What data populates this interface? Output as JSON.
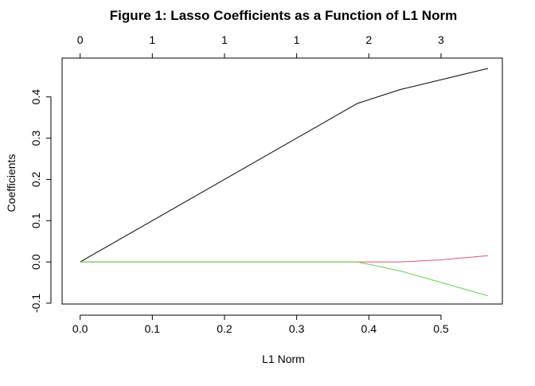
{
  "chart_data": {
    "type": "line",
    "title": "Figure 1: Lasso Coefficients as a Function of L1 Norm",
    "xlabel": "L1 Norm",
    "ylabel": "Coefficients",
    "xlim": [
      -0.025,
      0.585
    ],
    "ylim": [
      -0.102,
      0.494
    ],
    "x_ticks": [
      0.0,
      0.1,
      0.2,
      0.3,
      0.4,
      0.5
    ],
    "x_tick_labels": [
      "0.0",
      "0.1",
      "0.2",
      "0.3",
      "0.4",
      "0.5"
    ],
    "y_ticks": [
      -0.1,
      0.0,
      0.1,
      0.2,
      0.3,
      0.4
    ],
    "y_tick_labels": [
      "-0.1",
      "0.0",
      "0.1",
      "0.2",
      "0.3",
      "0.4"
    ],
    "top_axis": {
      "ticks": [
        0.0,
        0.1,
        0.2,
        0.3,
        0.4,
        0.5
      ],
      "labels": [
        "0",
        "1",
        "1",
        "1",
        "2",
        "3"
      ]
    },
    "grid": false,
    "series": [
      {
        "color": "#000000",
        "x": [
          0.0,
          0.384,
          0.444,
          0.565
        ],
        "y": [
          0.0,
          0.384,
          0.418,
          0.469
        ]
      },
      {
        "color": "#DF536B",
        "x": [
          0.0,
          0.384,
          0.444,
          0.5,
          0.565
        ],
        "y": [
          0.0,
          0.0,
          0.0,
          0.005,
          0.015
        ]
      },
      {
        "color": "#61D04F",
        "x": [
          0.0,
          0.384,
          0.444,
          0.565
        ],
        "y": [
          0.0,
          0.0,
          -0.022,
          -0.082
        ]
      }
    ]
  }
}
